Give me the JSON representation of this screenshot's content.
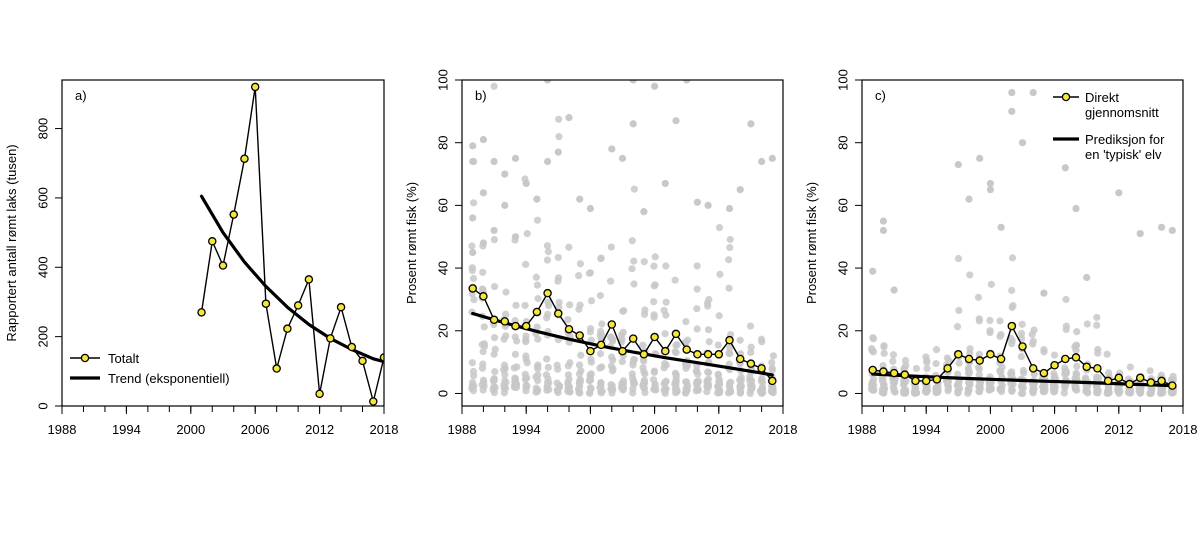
{
  "chart_data": [
    {
      "type": "line",
      "panel_label": "a)",
      "xlabel": "",
      "ylabel": "Rapportert antall rømt laks (tusen)",
      "xlim": [
        1988,
        2018
      ],
      "ylim": [
        0,
        940
      ],
      "xticks": [
        1988,
        1994,
        2000,
        2006,
        2012,
        2018
      ],
      "yticks": [
        0,
        200,
        400,
        600,
        800
      ],
      "legend": {
        "position": "bottom-left",
        "entries": [
          {
            "label": "Totalt",
            "style": "line-points"
          },
          {
            "label": "Trend (eksponentiell)",
            "style": "thick-line"
          }
        ]
      },
      "series": [
        {
          "name": "Totalt",
          "style": "line-points",
          "x": [
            2001,
            2002,
            2003,
            2004,
            2005,
            2006,
            2007,
            2008,
            2009,
            2010,
            2011,
            2012,
            2013,
            2014,
            2015,
            2016,
            2017,
            2018
          ],
          "y": [
            270,
            475,
            405,
            552,
            713,
            920,
            295,
            108,
            223,
            290,
            365,
            35,
            195,
            285,
            170,
            130,
            13,
            140
          ]
        },
        {
          "name": "Trend (eksponentiell)",
          "style": "thick-line",
          "x": [
            2001,
            2003,
            2005,
            2007,
            2009,
            2011,
            2013,
            2015,
            2017,
            2018
          ],
          "y": [
            605,
            500,
            415,
            345,
            285,
            235,
            195,
            163,
            136,
            128
          ]
        }
      ]
    },
    {
      "type": "line",
      "panel_label": "b)",
      "xlabel": "",
      "ylabel": "Prosent rømt fisk (%)",
      "xlim": [
        1988,
        2018
      ],
      "ylim": [
        -4,
        100
      ],
      "xticks": [
        1988,
        1994,
        2000,
        2006,
        2012,
        2018
      ],
      "yticks": [
        0,
        20,
        40,
        60,
        80,
        100
      ],
      "series": [
        {
          "style": "line-points",
          "x": [
            1989,
            1990,
            1991,
            1992,
            1993,
            1994,
            1995,
            1996,
            1997,
            1998,
            1999,
            2000,
            2001,
            2002,
            2003,
            2004,
            2005,
            2006,
            2007,
            2008,
            2009,
            2010,
            2011,
            2012,
            2013,
            2014,
            2015,
            2016,
            2017
          ],
          "y": [
            33.5,
            31,
            23.5,
            23,
            21.5,
            21.5,
            26,
            32,
            25.5,
            20.5,
            18.5,
            13.5,
            15.5,
            22,
            13.5,
            17.5,
            12.5,
            18,
            13.5,
            19,
            14,
            12.5,
            12.5,
            12.5,
            17,
            11,
            9.5,
            8,
            4
          ]
        },
        {
          "style": "thick-line",
          "x": [
            1989,
            1992,
            1995,
            1998,
            2001,
            2004,
            2007,
            2010,
            2013,
            2016,
            2017
          ],
          "y": [
            25.5,
            22.5,
            19.8,
            17.3,
            15.1,
            13.2,
            11.4,
            9.8,
            8.2,
            6.5,
            5.9
          ]
        },
        {
          "style": "scatter-gray",
          "x": [
            1989,
            1989,
            1989,
            1989,
            1990,
            1990,
            1990,
            1991,
            1991,
            1992,
            1992,
            1993,
            1993,
            1994,
            1995,
            1996,
            1996,
            1997,
            1998,
            1999,
            2000,
            2002,
            2003,
            2004,
            2004,
            2005,
            2006,
            2007,
            2008,
            2009,
            2010,
            2011,
            2013,
            2014,
            2015,
            2016,
            2017
          ],
          "y": [
            79,
            74,
            56,
            45,
            81,
            64,
            48,
            74,
            52,
            70,
            60,
            75,
            50,
            67,
            62,
            100,
            74,
            77,
            88,
            62,
            59,
            78,
            75,
            100,
            86,
            58,
            98,
            67,
            87,
            100,
            61,
            60,
            59,
            65,
            86,
            74,
            75
          ]
        }
      ]
    },
    {
      "type": "line",
      "panel_label": "c)",
      "xlabel": "",
      "ylabel": "Prosent rømt fisk (%)",
      "xlim": [
        1988,
        2018
      ],
      "ylim": [
        -4,
        100
      ],
      "xticks": [
        1988,
        1994,
        2000,
        2006,
        2012,
        2018
      ],
      "yticks": [
        0,
        20,
        40,
        60,
        80,
        100
      ],
      "legend": {
        "position": "top-right",
        "entries": [
          {
            "label_lines": [
              "Direkt",
              "gjennomsnitt"
            ],
            "style": "line-points"
          },
          {
            "label_lines": [
              "Prediksjon for",
              "en 'typisk' elv"
            ],
            "style": "thick-line"
          }
        ]
      },
      "series": [
        {
          "name": "Direkt gjennomsnitt",
          "style": "line-points",
          "x": [
            1989,
            1990,
            1991,
            1992,
            1993,
            1994,
            1995,
            1996,
            1997,
            1998,
            1999,
            2000,
            2001,
            2002,
            2003,
            2004,
            2005,
            2006,
            2007,
            2008,
            2009,
            2010,
            2011,
            2012,
            2013,
            2014,
            2015,
            2016,
            2017
          ],
          "y": [
            7.5,
            7,
            6.5,
            6,
            4,
            4,
            4.5,
            8,
            12.5,
            11,
            10.5,
            12.5,
            11,
            21.5,
            15,
            8,
            6.5,
            9,
            11,
            11.5,
            8.5,
            8,
            4,
            5,
            3,
            5,
            3.5,
            4,
            2.5
          ]
        },
        {
          "name": "Prediksjon for en 'typisk' elv",
          "style": "thick-line",
          "x": [
            1989,
            1993,
            1997,
            2001,
            2005,
            2009,
            2013,
            2017
          ],
          "y": [
            6.2,
            5.5,
            4.9,
            4.4,
            3.9,
            3.5,
            3.0,
            2.5
          ]
        },
        {
          "style": "scatter-gray",
          "x": [
            1989,
            1990,
            1990,
            1991,
            1997,
            1998,
            1999,
            2000,
            2000,
            2001,
            2002,
            2002,
            2003,
            2004,
            2005,
            2007,
            2008,
            2009,
            2012,
            2014,
            2016,
            2017
          ],
          "y": [
            39,
            55,
            52,
            33,
            73,
            62,
            75,
            67,
            65,
            53,
            96,
            90,
            80,
            96,
            32,
            72,
            59,
            37,
            64,
            51,
            53,
            52
          ]
        }
      ]
    }
  ]
}
